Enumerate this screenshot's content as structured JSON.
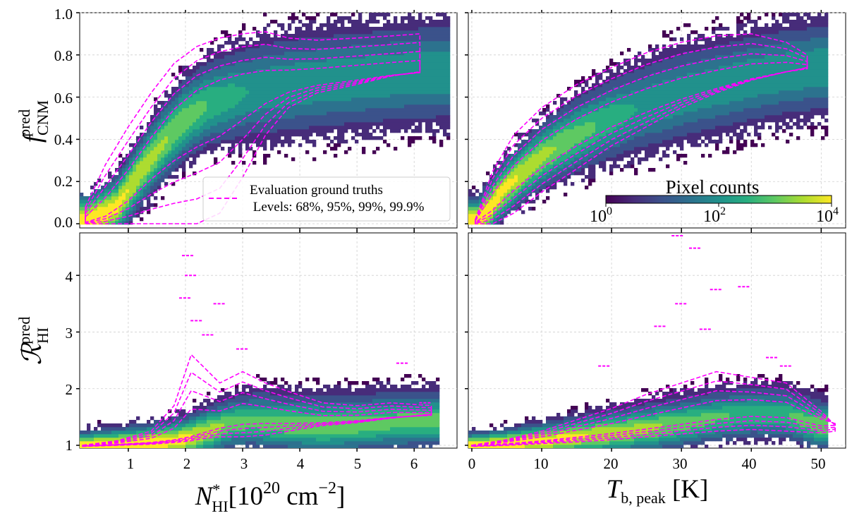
{
  "chart_data": [
    {
      "type": "scatter",
      "panel": "top-left",
      "style": "2D histogram (density)",
      "ylabel": "f_CNM^pred",
      "xlim": [
        0.15,
        6.75
      ],
      "ylim": [
        -0.02,
        1.0
      ],
      "x_ticks": [
        1,
        2,
        3,
        4,
        5,
        6
      ],
      "y_ticks": [
        0.0,
        0.2,
        0.4,
        0.6,
        0.8,
        1.0
      ],
      "y_tick_labels": [
        "0.0",
        "0.2",
        "0.4",
        "0.6",
        "0.8",
        "1.0"
      ],
      "ridge_x": [
        0.3,
        0.8,
        1.2,
        1.6,
        2.0,
        2.4,
        3.0,
        3.6,
        4.2,
        5.0,
        5.8,
        6.5
      ],
      "ridge_y": [
        0.01,
        0.08,
        0.24,
        0.38,
        0.5,
        0.57,
        0.62,
        0.65,
        0.67,
        0.69,
        0.71,
        0.72
      ],
      "spread": 0.12,
      "contour_x": [
        0.25,
        0.6,
        1.0,
        1.4,
        1.8,
        2.2,
        2.6,
        3.0,
        3.4,
        3.8,
        4.3,
        5.0,
        5.6,
        6.1
      ],
      "contour_upper": [
        0.08,
        0.28,
        0.46,
        0.62,
        0.76,
        0.84,
        0.88,
        0.9,
        0.91,
        0.88,
        0.87,
        0.88,
        0.89,
        0.9
      ],
      "contour_lower": [
        0.0,
        0.0,
        0.0,
        0.0,
        0.0,
        0.0,
        0.05,
        0.22,
        0.42,
        0.55,
        0.62,
        0.66,
        0.7,
        0.72
      ],
      "legend": {
        "label_line1": "Evaluation ground truths",
        "label_line2": " Levels: 68%, 95%, 99%, 99.9%",
        "position": "lower-right"
      }
    },
    {
      "type": "scatter",
      "panel": "top-right",
      "style": "2D histogram (density)",
      "xlim": [
        -0.5,
        53.5
      ],
      "ylim": [
        -0.02,
        1.0
      ],
      "ridge_x": [
        1,
        5,
        10,
        15,
        20,
        25,
        30,
        35,
        40,
        45,
        50
      ],
      "ridge_y": [
        0.01,
        0.18,
        0.32,
        0.42,
        0.5,
        0.56,
        0.61,
        0.65,
        0.69,
        0.72,
        0.74
      ],
      "spread": 0.11,
      "contour_x": [
        0.5,
        3,
        6,
        10,
        15,
        20,
        25,
        30,
        35,
        40,
        45,
        48
      ],
      "contour_upper": [
        0.02,
        0.25,
        0.42,
        0.55,
        0.66,
        0.74,
        0.81,
        0.86,
        0.89,
        0.9,
        0.86,
        0.8
      ],
      "contour_lower": [
        0.0,
        0.0,
        0.05,
        0.15,
        0.26,
        0.37,
        0.46,
        0.55,
        0.62,
        0.68,
        0.72,
        0.74
      ],
      "colorbar": {
        "title": "Pixel counts",
        "tick_labels": [
          "10",
          "10",
          "10"
        ],
        "tick_exponents": [
          "0",
          "2",
          "4"
        ],
        "scale": "log",
        "range": [
          1,
          10000
        ],
        "colors": [
          "#440154",
          "#3b528b",
          "#21918c",
          "#5ec962",
          "#fde725"
        ]
      }
    },
    {
      "type": "scatter",
      "panel": "bottom-left",
      "style": "2D histogram (density)",
      "ylabel": "R_HI^pred",
      "xlabel_unit": "[10",
      "xlabel_exp": "20",
      "xlabel_tail": " cm",
      "xlabel_exp2": "−2",
      "xlabel_close": "]",
      "xlim": [
        0.15,
        6.75
      ],
      "ylim": [
        0.95,
        4.75
      ],
      "x_ticks": [
        1,
        2,
        3,
        4,
        5,
        6
      ],
      "x_tick_labels": [
        "1",
        "2",
        "3",
        "4",
        "5",
        "6"
      ],
      "y_ticks": [
        1,
        2,
        3,
        4
      ],
      "y_tick_labels": [
        "1",
        "2",
        "3",
        "4"
      ],
      "ridge_x": [
        0.3,
        1.0,
        1.6,
        2.0,
        2.4,
        2.8,
        3.2,
        3.8,
        4.4,
        5.0,
        5.6,
        6.3
      ],
      "ridge_y": [
        1.0,
        1.03,
        1.08,
        1.15,
        1.3,
        1.45,
        1.5,
        1.45,
        1.42,
        1.45,
        1.5,
        1.52
      ],
      "spread": 0.25,
      "contour_x": [
        0.2,
        0.8,
        1.4,
        1.8,
        2.1,
        2.3,
        2.6,
        3.0,
        3.4,
        3.8,
        4.4,
        5.0,
        5.6,
        6.3
      ],
      "contour_upper": [
        1.0,
        1.08,
        1.25,
        1.7,
        2.6,
        2.4,
        2.1,
        2.3,
        2.1,
        1.95,
        1.75,
        1.7,
        1.75,
        1.7
      ],
      "contour_lower": [
        0.98,
        1.0,
        1.02,
        1.05,
        1.08,
        1.12,
        1.15,
        1.15,
        1.18,
        1.25,
        1.35,
        1.4,
        1.48,
        1.55
      ],
      "outliers": [
        [
          2.05,
          4.35
        ],
        [
          2.1,
          4.0
        ],
        [
          2.0,
          3.6
        ],
        [
          2.2,
          3.2
        ],
        [
          2.6,
          3.5
        ],
        [
          5.8,
          2.45
        ],
        [
          6.2,
          1.75
        ],
        [
          3.0,
          2.7
        ],
        [
          2.4,
          2.95
        ]
      ]
    },
    {
      "type": "scatter",
      "panel": "bottom-right",
      "style": "2D histogram (density)",
      "xlim": [
        -0.5,
        53.5
      ],
      "ylim": [
        0.95,
        4.75
      ],
      "x_ticks": [
        0,
        10,
        20,
        30,
        40,
        50
      ],
      "x_tick_labels": [
        "0",
        "10",
        "20",
        "30",
        "40",
        "50"
      ],
      "xlabel_unit": " [K]",
      "ridge_x": [
        1,
        5,
        10,
        15,
        20,
        25,
        30,
        35,
        40,
        45,
        50
      ],
      "ridge_y": [
        1.0,
        1.04,
        1.1,
        1.18,
        1.26,
        1.35,
        1.45,
        1.55,
        1.62,
        1.6,
        1.4
      ],
      "spread": 0.22,
      "contour_x": [
        0,
        5,
        10,
        15,
        20,
        25,
        30,
        35,
        40,
        45,
        50,
        52
      ],
      "contour_upper": [
        1.0,
        1.1,
        1.25,
        1.45,
        1.65,
        1.9,
        2.1,
        2.3,
        2.2,
        2.1,
        1.6,
        1.35
      ],
      "contour_lower": [
        0.98,
        1.0,
        1.03,
        1.06,
        1.1,
        1.15,
        1.2,
        1.25,
        1.28,
        1.25,
        1.22,
        1.25
      ],
      "outliers": [
        [
          29.5,
          4.7
        ],
        [
          32,
          4.48
        ],
        [
          35,
          3.75
        ],
        [
          30,
          3.5
        ],
        [
          27,
          3.1
        ],
        [
          33.5,
          3.05
        ],
        [
          43,
          2.55
        ],
        [
          45,
          2.4
        ],
        [
          19,
          2.4
        ],
        [
          39,
          3.8
        ]
      ]
    }
  ],
  "contour_color": "#ff00ff",
  "colormap": [
    "#440154",
    "#472c7a",
    "#3b528b",
    "#2c728e",
    "#21918c",
    "#28ae80",
    "#5ec962",
    "#addc30",
    "#fde725"
  ]
}
